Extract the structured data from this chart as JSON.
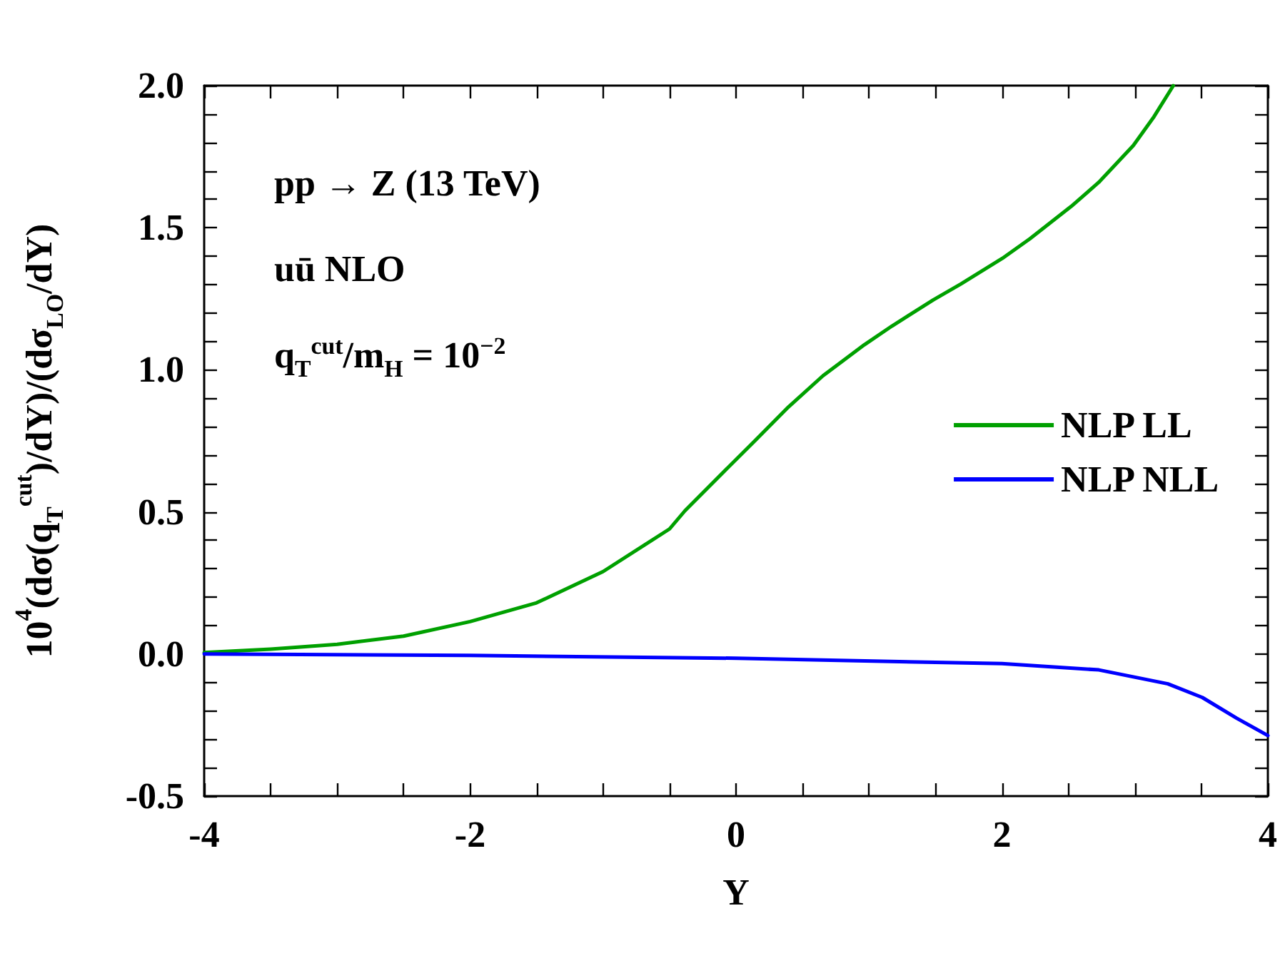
{
  "chart_data": {
    "type": "line",
    "xlabel": "Y",
    "ylabel": "10$^{4}$(dσ(q$_{T}$$^{cut}$)/dY)/(dσ$_{LO}$/dY)",
    "annotations": [
      "pp → Z (13 TeV)",
      "uū NLO",
      "q$_{T}$$^{cut}$/m$_{H}$ = 10$^{−2}$"
    ],
    "series": [
      {
        "name": "NLP LL",
        "color": "#00a000",
        "x": [
          -4,
          -3.5,
          -3,
          -2.5,
          -2,
          -1.5,
          -1,
          -0.5,
          -0.384,
          -0.073,
          0.135,
          0.394,
          0.654,
          0.965,
          1.173,
          1.484,
          1.691,
          2.003,
          2.21,
          2.521,
          2.729,
          2.988,
          3.144,
          3.289
        ],
        "values": [
          0.005,
          0.017,
          0.034,
          0.063,
          0.114,
          0.18,
          0.29,
          0.44,
          0.504,
          0.65,
          0.747,
          0.869,
          0.979,
          1.088,
          1.154,
          1.246,
          1.302,
          1.392,
          1.461,
          1.575,
          1.66,
          1.789,
          1.891,
          2.0
        ]
      },
      {
        "name": "NLP NLL",
        "color": "#0000ff",
        "x": [
          -4,
          -2,
          0,
          2,
          2.729,
          3.248,
          3.507,
          3.766,
          4
        ],
        "values": [
          0,
          -0.005,
          -0.015,
          -0.034,
          -0.056,
          -0.105,
          -0.153,
          -0.226,
          -0.287
        ]
      }
    ],
    "xlim": [
      -4,
      4
    ],
    "xticks": [
      -4,
      {
        "value": -3.5,
        "label": null
      },
      {
        "value": -3,
        "label": null
      },
      {
        "value": -2.5,
        "label": null
      },
      -2,
      {
        "value": -1.5,
        "label": null
      },
      {
        "value": -1,
        "label": null
      },
      {
        "value": -0.5,
        "label": null
      },
      0,
      {
        "value": 0.5,
        "label": null
      },
      {
        "value": 1,
        "label": null
      },
      {
        "value": 1.5,
        "label": null
      },
      2,
      {
        "value": 2.5,
        "label": null
      },
      {
        "value": 3,
        "label": null
      },
      {
        "value": 3.5,
        "label": null
      },
      4
    ],
    "ylim": [
      -0.5,
      2.0
    ],
    "yticks": [
      {
        "value": -0.5,
        "label": "-0.5"
      },
      {
        "value": -0.4,
        "label": null
      },
      {
        "value": -0.3,
        "label": null
      },
      {
        "value": -0.2,
        "label": null
      },
      {
        "value": -0.1,
        "label": null
      },
      {
        "value": 0,
        "label": "0.0"
      },
      {
        "value": 0.1,
        "label": null
      },
      {
        "value": 0.2,
        "label": null
      },
      {
        "value": 0.3,
        "label": null
      },
      {
        "value": 0.4,
        "label": null
      },
      {
        "value": 0.5,
        "label": "0.5"
      },
      {
        "value": 0.6,
        "label": null
      },
      {
        "value": 0.7,
        "label": null
      },
      {
        "value": 0.8,
        "label": null
      },
      {
        "value": 0.9,
        "label": null
      },
      {
        "value": 1.0,
        "label": "1.0"
      },
      {
        "value": 1.1,
        "label": null
      },
      {
        "value": 1.2,
        "label": null
      },
      {
        "value": 1.3,
        "label": null
      },
      {
        "value": 1.4,
        "label": null
      },
      {
        "value": 1.5,
        "label": "1.5"
      },
      {
        "value": 1.6,
        "label": null
      },
      {
        "value": 1.7,
        "label": null
      },
      {
        "value": 1.8,
        "label": null
      },
      {
        "value": 1.9,
        "label": null
      },
      {
        "value": 2.0,
        "label": "2.0"
      }
    ],
    "grid": false,
    "legend": "right",
    "marker": "none",
    "line_style": "solid"
  }
}
